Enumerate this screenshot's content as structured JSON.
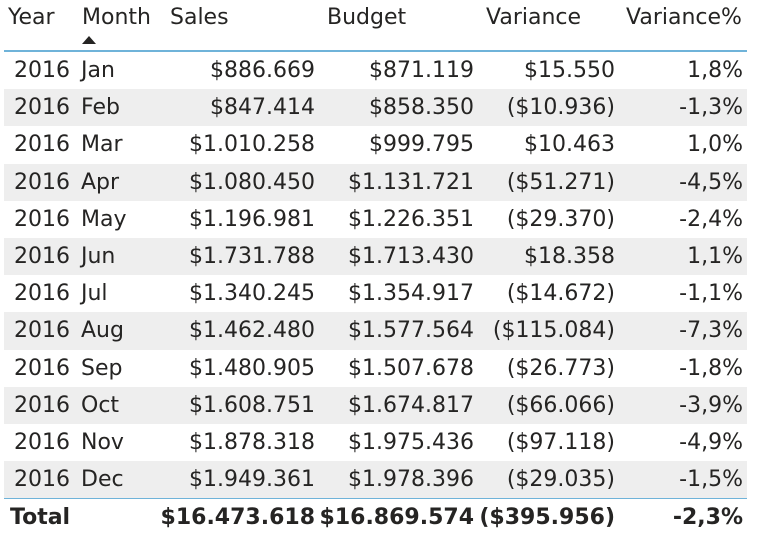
{
  "headers": {
    "year": "Year",
    "month": "Month",
    "sales": "Sales",
    "budget": "Budget",
    "variance": "Variance",
    "variance_pct": "Variance%"
  },
  "rows": [
    {
      "year": "2016",
      "month": "Jan",
      "sales": "$886.669",
      "budget": "$871.119",
      "variance": "$15.550",
      "variance_pct": "1,8%"
    },
    {
      "year": "2016",
      "month": "Feb",
      "sales": "$847.414",
      "budget": "$858.350",
      "variance": "($10.936)",
      "variance_pct": "-1,3%"
    },
    {
      "year": "2016",
      "month": "Mar",
      "sales": "$1.010.258",
      "budget": "$999.795",
      "variance": "$10.463",
      "variance_pct": "1,0%"
    },
    {
      "year": "2016",
      "month": "Apr",
      "sales": "$1.080.450",
      "budget": "$1.131.721",
      "variance": "($51.271)",
      "variance_pct": "-4,5%"
    },
    {
      "year": "2016",
      "month": "May",
      "sales": "$1.196.981",
      "budget": "$1.226.351",
      "variance": "($29.370)",
      "variance_pct": "-2,4%"
    },
    {
      "year": "2016",
      "month": "Jun",
      "sales": "$1.731.788",
      "budget": "$1.713.430",
      "variance": "$18.358",
      "variance_pct": "1,1%"
    },
    {
      "year": "2016",
      "month": "Jul",
      "sales": "$1.340.245",
      "budget": "$1.354.917",
      "variance": "($14.672)",
      "variance_pct": "-1,1%"
    },
    {
      "year": "2016",
      "month": "Aug",
      "sales": "$1.462.480",
      "budget": "$1.577.564",
      "variance": "($115.084)",
      "variance_pct": "-7,3%"
    },
    {
      "year": "2016",
      "month": "Sep",
      "sales": "$1.480.905",
      "budget": "$1.507.678",
      "variance": "($26.773)",
      "variance_pct": "-1,8%"
    },
    {
      "year": "2016",
      "month": "Oct",
      "sales": "$1.608.751",
      "budget": "$1.674.817",
      "variance": "($66.066)",
      "variance_pct": "-3,9%"
    },
    {
      "year": "2016",
      "month": "Nov",
      "sales": "$1.878.318",
      "budget": "$1.975.436",
      "variance": "($97.118)",
      "variance_pct": "-4,9%"
    },
    {
      "year": "2016",
      "month": "Dec",
      "sales": "$1.949.361",
      "budget": "$1.978.396",
      "variance": "($29.035)",
      "variance_pct": "-1,5%"
    }
  ],
  "total": {
    "label": "Total",
    "sales": "$16.473.618",
    "budget": "$16.869.574",
    "variance": "($395.956)",
    "variance_pct": "-2,3%"
  },
  "sort": {
    "column": "Month",
    "direction": "ascending",
    "icon": "sort-ascending-icon"
  },
  "colors": {
    "header_line": "#6fb3d9",
    "alt_row": "#eeeeee",
    "text": "#252423"
  }
}
